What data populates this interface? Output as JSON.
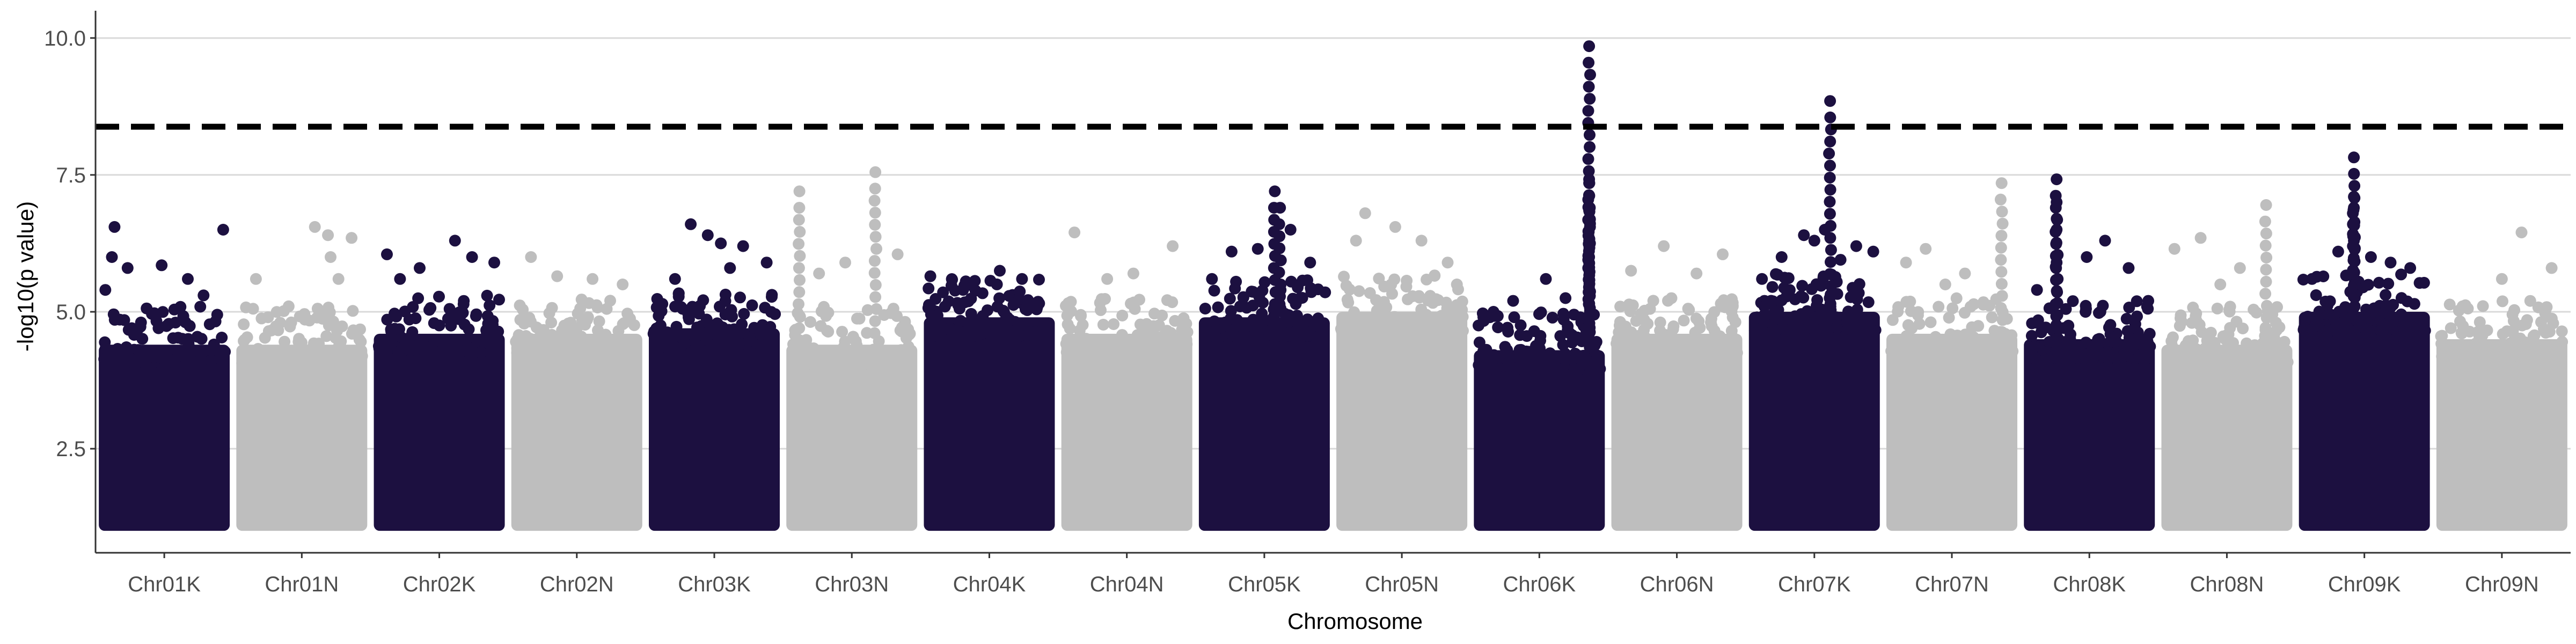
{
  "chart_data": {
    "type": "scatter",
    "subtype": "manhattan",
    "title": "",
    "xlabel": "Chromosome",
    "ylabel": "-log10(p value)",
    "ylim": [
      0.6,
      10.4
    ],
    "yticks": [
      2.5,
      5.0,
      7.5,
      10.0
    ],
    "ytick_labels": [
      "2.5",
      "5.0",
      "7.5",
      "10.0"
    ],
    "grid": "horizontal major lines",
    "legend": "none",
    "threshold": {
      "value": 8.38,
      "style": "dashed",
      "color": "#000000"
    },
    "colors": {
      "odd": "#1c1040",
      "even": "#bebebe",
      "grid": "#d9d9d9"
    },
    "categories": [
      "Chr01K",
      "Chr01N",
      "Chr02K",
      "Chr02N",
      "Chr03K",
      "Chr03N",
      "Chr04K",
      "Chr04N",
      "Chr05K",
      "Chr05N",
      "Chr06K",
      "Chr06N",
      "Chr07K",
      "Chr07N",
      "Chr08K",
      "Chr08N",
      "Chr09K",
      "Chr09N"
    ],
    "floor": 1.0,
    "series": [
      {
        "chromosome": "Chr01K",
        "dense_top": 4.4,
        "peaks": [
          [
            0.12,
            6.55
          ],
          [
            0.1,
            6.0
          ],
          [
            0.22,
            5.8
          ],
          [
            0.48,
            5.85
          ],
          [
            0.68,
            5.6
          ],
          [
            0.95,
            6.5
          ],
          [
            0.05,
            5.4
          ],
          [
            0.8,
            5.3
          ]
        ]
      },
      {
        "chromosome": "Chr01N",
        "dense_top": 4.4,
        "peaks": [
          [
            0.6,
            6.55
          ],
          [
            0.7,
            6.4
          ],
          [
            0.72,
            6.0
          ],
          [
            0.88,
            6.35
          ],
          [
            0.78,
            5.6
          ],
          [
            0.15,
            5.6
          ],
          [
            0.4,
            5.1
          ]
        ]
      },
      {
        "chromosome": "Chr02K",
        "dense_top": 4.6,
        "peaks": [
          [
            0.1,
            6.05
          ],
          [
            0.62,
            6.3
          ],
          [
            0.92,
            5.9
          ],
          [
            0.35,
            5.8
          ],
          [
            0.75,
            6.0
          ],
          [
            0.2,
            5.6
          ]
        ]
      },
      {
        "chromosome": "Chr02N",
        "dense_top": 4.6,
        "peaks": [
          [
            0.15,
            6.0
          ],
          [
            0.35,
            5.65
          ],
          [
            0.62,
            5.6
          ],
          [
            0.85,
            5.5
          ]
        ]
      },
      {
        "chromosome": "Chr03K",
        "dense_top": 4.7,
        "peaks": [
          [
            0.32,
            6.6
          ],
          [
            0.45,
            6.4
          ],
          [
            0.55,
            6.25
          ],
          [
            0.72,
            6.2
          ],
          [
            0.9,
            5.9
          ],
          [
            0.2,
            5.6
          ],
          [
            0.62,
            5.8
          ]
        ]
      },
      {
        "chromosome": "Chr03N",
        "dense_top": 4.4,
        "peaks": [
          [
            0.1,
            7.2
          ],
          [
            0.68,
            7.55
          ],
          [
            0.85,
            6.05
          ],
          [
            0.45,
            5.9
          ],
          [
            0.25,
            5.7
          ]
        ]
      },
      {
        "chromosome": "Chr04K",
        "dense_top": 4.9,
        "peaks": [
          [
            0.05,
            5.65
          ],
          [
            0.58,
            5.75
          ],
          [
            0.75,
            5.6
          ],
          [
            0.3,
            5.4
          ]
        ]
      },
      {
        "chromosome": "Chr04N",
        "dense_top": 4.6,
        "peaks": [
          [
            0.1,
            6.45
          ],
          [
            0.85,
            6.2
          ],
          [
            0.55,
            5.7
          ],
          [
            0.35,
            5.6
          ]
        ]
      },
      {
        "chromosome": "Chr05K",
        "dense_top": 4.9,
        "peaks": [
          [
            0.58,
            7.2
          ],
          [
            0.62,
            6.9
          ],
          [
            0.45,
            6.15
          ],
          [
            0.25,
            6.1
          ],
          [
            0.7,
            6.5
          ],
          [
            0.85,
            5.9
          ],
          [
            0.1,
            5.6
          ]
        ]
      },
      {
        "chromosome": "Chr05N",
        "dense_top": 5.0,
        "peaks": [
          [
            0.22,
            6.8
          ],
          [
            0.45,
            6.55
          ],
          [
            0.15,
            6.3
          ],
          [
            0.65,
            6.3
          ],
          [
            0.85,
            5.9
          ]
        ]
      },
      {
        "chromosome": "Chr06K",
        "dense_top": 4.3,
        "peaks": [
          [
            0.88,
            9.85
          ],
          [
            0.88,
            7.42
          ],
          [
            0.88,
            7.35
          ],
          [
            0.88,
            6.85
          ],
          [
            0.88,
            6.3
          ],
          [
            0.88,
            6.0
          ],
          [
            0.55,
            5.6
          ],
          [
            0.3,
            5.2
          ],
          [
            0.7,
            5.25
          ],
          [
            0.15,
            5.0
          ]
        ]
      },
      {
        "chromosome": "Chr06N",
        "dense_top": 4.6,
        "peaks": [
          [
            0.15,
            5.75
          ],
          [
            0.4,
            6.2
          ],
          [
            0.85,
            6.05
          ],
          [
            0.65,
            5.7
          ]
        ]
      },
      {
        "chromosome": "Chr07K",
        "dense_top": 5.0,
        "peaks": [
          [
            0.62,
            8.85
          ],
          [
            0.58,
            6.5
          ],
          [
            0.42,
            6.4
          ],
          [
            0.82,
            6.2
          ],
          [
            0.7,
            5.95
          ],
          [
            0.95,
            6.1
          ],
          [
            0.25,
            6.0
          ],
          [
            0.5,
            6.3
          ],
          [
            0.1,
            5.6
          ]
        ]
      },
      {
        "chromosome": "Chr07N",
        "dense_top": 4.6,
        "peaks": [
          [
            0.88,
            7.35
          ],
          [
            0.3,
            6.15
          ],
          [
            0.15,
            5.9
          ],
          [
            0.6,
            5.7
          ],
          [
            0.45,
            5.5
          ]
        ]
      },
      {
        "chromosome": "Chr08K",
        "dense_top": 4.5,
        "peaks": [
          [
            0.25,
            7.42
          ],
          [
            0.25,
            7.0
          ],
          [
            0.25,
            6.5
          ],
          [
            0.25,
            5.9
          ],
          [
            0.48,
            6.0
          ],
          [
            0.62,
            6.3
          ],
          [
            0.8,
            5.8
          ],
          [
            0.95,
            5.2
          ],
          [
            0.1,
            5.4
          ]
        ]
      },
      {
        "chromosome": "Chr08N",
        "dense_top": 4.4,
        "peaks": [
          [
            0.1,
            6.15
          ],
          [
            0.3,
            6.35
          ],
          [
            0.8,
            6.95
          ],
          [
            0.6,
            5.8
          ],
          [
            0.45,
            5.5
          ]
        ]
      },
      {
        "chromosome": "Chr09K",
        "dense_top": 5.0,
        "peaks": [
          [
            0.42,
            7.82
          ],
          [
            0.42,
            7.1
          ],
          [
            0.42,
            6.9
          ],
          [
            0.42,
            6.6
          ],
          [
            0.42,
            6.3
          ],
          [
            0.3,
            6.1
          ],
          [
            0.55,
            6.0
          ],
          [
            0.7,
            5.9
          ],
          [
            0.1,
            5.6
          ],
          [
            0.85,
            5.8
          ]
        ]
      },
      {
        "chromosome": "Chr09N",
        "dense_top": 4.5,
        "peaks": [
          [
            0.65,
            6.45
          ],
          [
            0.88,
            5.8
          ],
          [
            0.5,
            5.6
          ],
          [
            0.2,
            5.1
          ]
        ]
      }
    ]
  }
}
